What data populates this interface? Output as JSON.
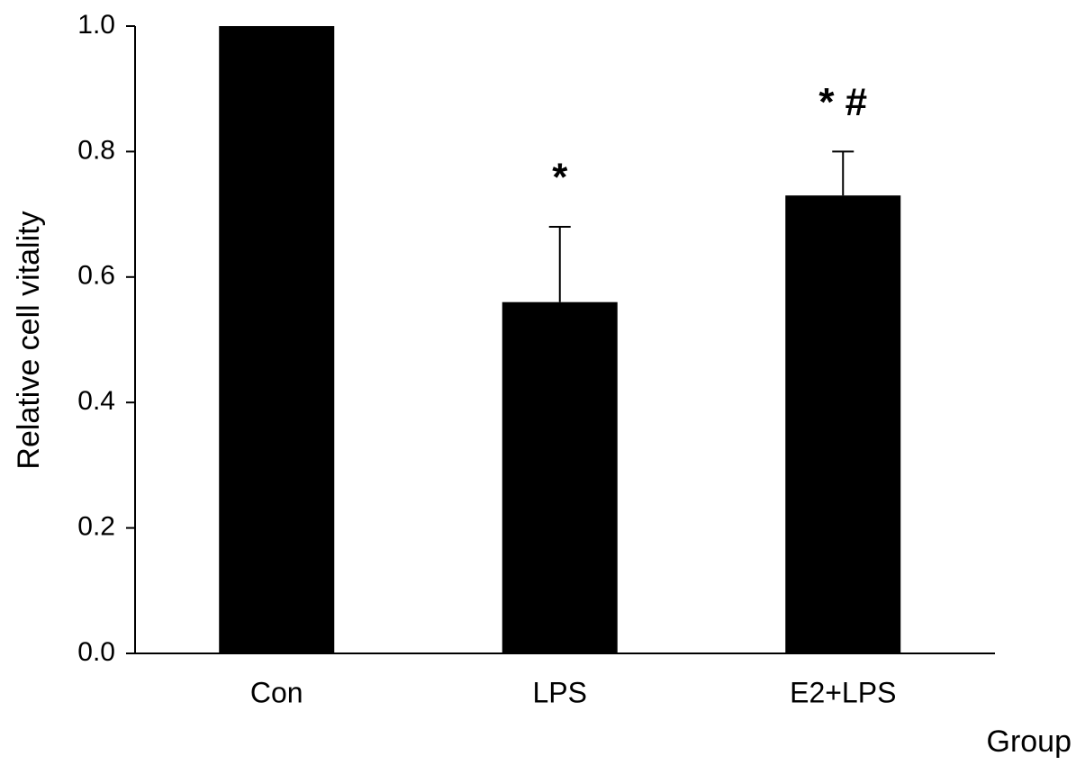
{
  "chart_data": {
    "type": "bar",
    "categories": [
      "Con",
      "LPS",
      "E2+LPS"
    ],
    "values": [
      1.0,
      0.56,
      0.73
    ],
    "errors": [
      null,
      0.12,
      0.07
    ],
    "annotations": [
      null,
      "*",
      "* #"
    ],
    "color": "#000000",
    "y_label": "Relative cell vitality",
    "x_label": "Group",
    "ylim": [
      0,
      1.0
    ],
    "yticks": [
      {
        "value": 0,
        "label": "0.0"
      },
      0.2,
      0.4,
      0.6,
      0.8,
      {
        "value": 1,
        "label": "1.0"
      }
    ]
  }
}
